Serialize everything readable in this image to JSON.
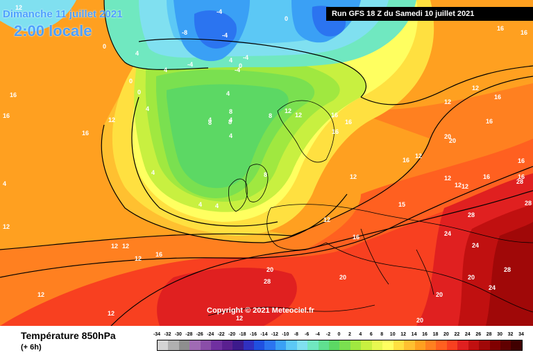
{
  "header": {
    "date": "Dimanche 11 juillet 2021",
    "time": "2:00 locale",
    "run": "Run GFS 18 Z du Samedi 10 juillet 2021"
  },
  "copyright": "Copyright © 2021 Meteociel.fr",
  "footer": {
    "variable": "Température 850hPa",
    "step": "(+ 6h)"
  },
  "legend": {
    "ticks": [
      "-34",
      "-32",
      "-30",
      "-28",
      "-26",
      "-24",
      "-22",
      "-20",
      "-18",
      "-16",
      "-14",
      "-12",
      "-10",
      "-8",
      "-6",
      "-4",
      "-2",
      "0",
      "2",
      "4",
      "6",
      "8",
      "10",
      "12",
      "14",
      "16",
      "18",
      "20",
      "22",
      "24",
      "26",
      "28",
      "30",
      "32",
      "34"
    ],
    "colors": [
      "#d4d4d4",
      "#b0b0b0",
      "#8e8e8e",
      "#a06bb4",
      "#8a4ea8",
      "#7030a0",
      "#5a2090",
      "#3c1a8c",
      "#3030c0",
      "#2050e0",
      "#2b74f0",
      "#3aa0f5",
      "#5cc8f5",
      "#80e0f0",
      "#70e8c0",
      "#60e090",
      "#5cd864",
      "#7ae050",
      "#a0e840",
      "#c8f040",
      "#e8f850",
      "#ffff60",
      "#ffe040",
      "#ffc030",
      "#ffa020",
      "#ff8020",
      "#ff6020",
      "#f84020",
      "#e02020",
      "#c01010",
      "#a00808",
      "#800000",
      "#600000",
      "#400000"
    ]
  },
  "map_labels": [
    "12",
    "-4",
    "0",
    "-8",
    "-4",
    "0",
    "4",
    "-4",
    "-4",
    "0",
    "4",
    "16",
    "4",
    "4",
    "0",
    "4",
    "-4",
    "4",
    "4",
    "0",
    "8",
    "8",
    "8",
    "4",
    "12",
    "12",
    "16",
    "16",
    "16",
    "16",
    "12",
    "12",
    "16",
    "16",
    "16",
    "16",
    "16",
    "20",
    "20",
    "16",
    "12",
    "12",
    "12",
    "12",
    "16",
    "16",
    "28",
    "28",
    "28",
    "24",
    "24",
    "24",
    "20",
    "20",
    "28",
    "28",
    "20",
    "20",
    "20",
    "12",
    "12",
    "12",
    "12",
    "12",
    "12",
    "16",
    "16",
    "15",
    "12",
    "4",
    "4",
    "4",
    "8",
    "8",
    "16",
    "16",
    "4",
    "12",
    "12",
    "12"
  ]
}
